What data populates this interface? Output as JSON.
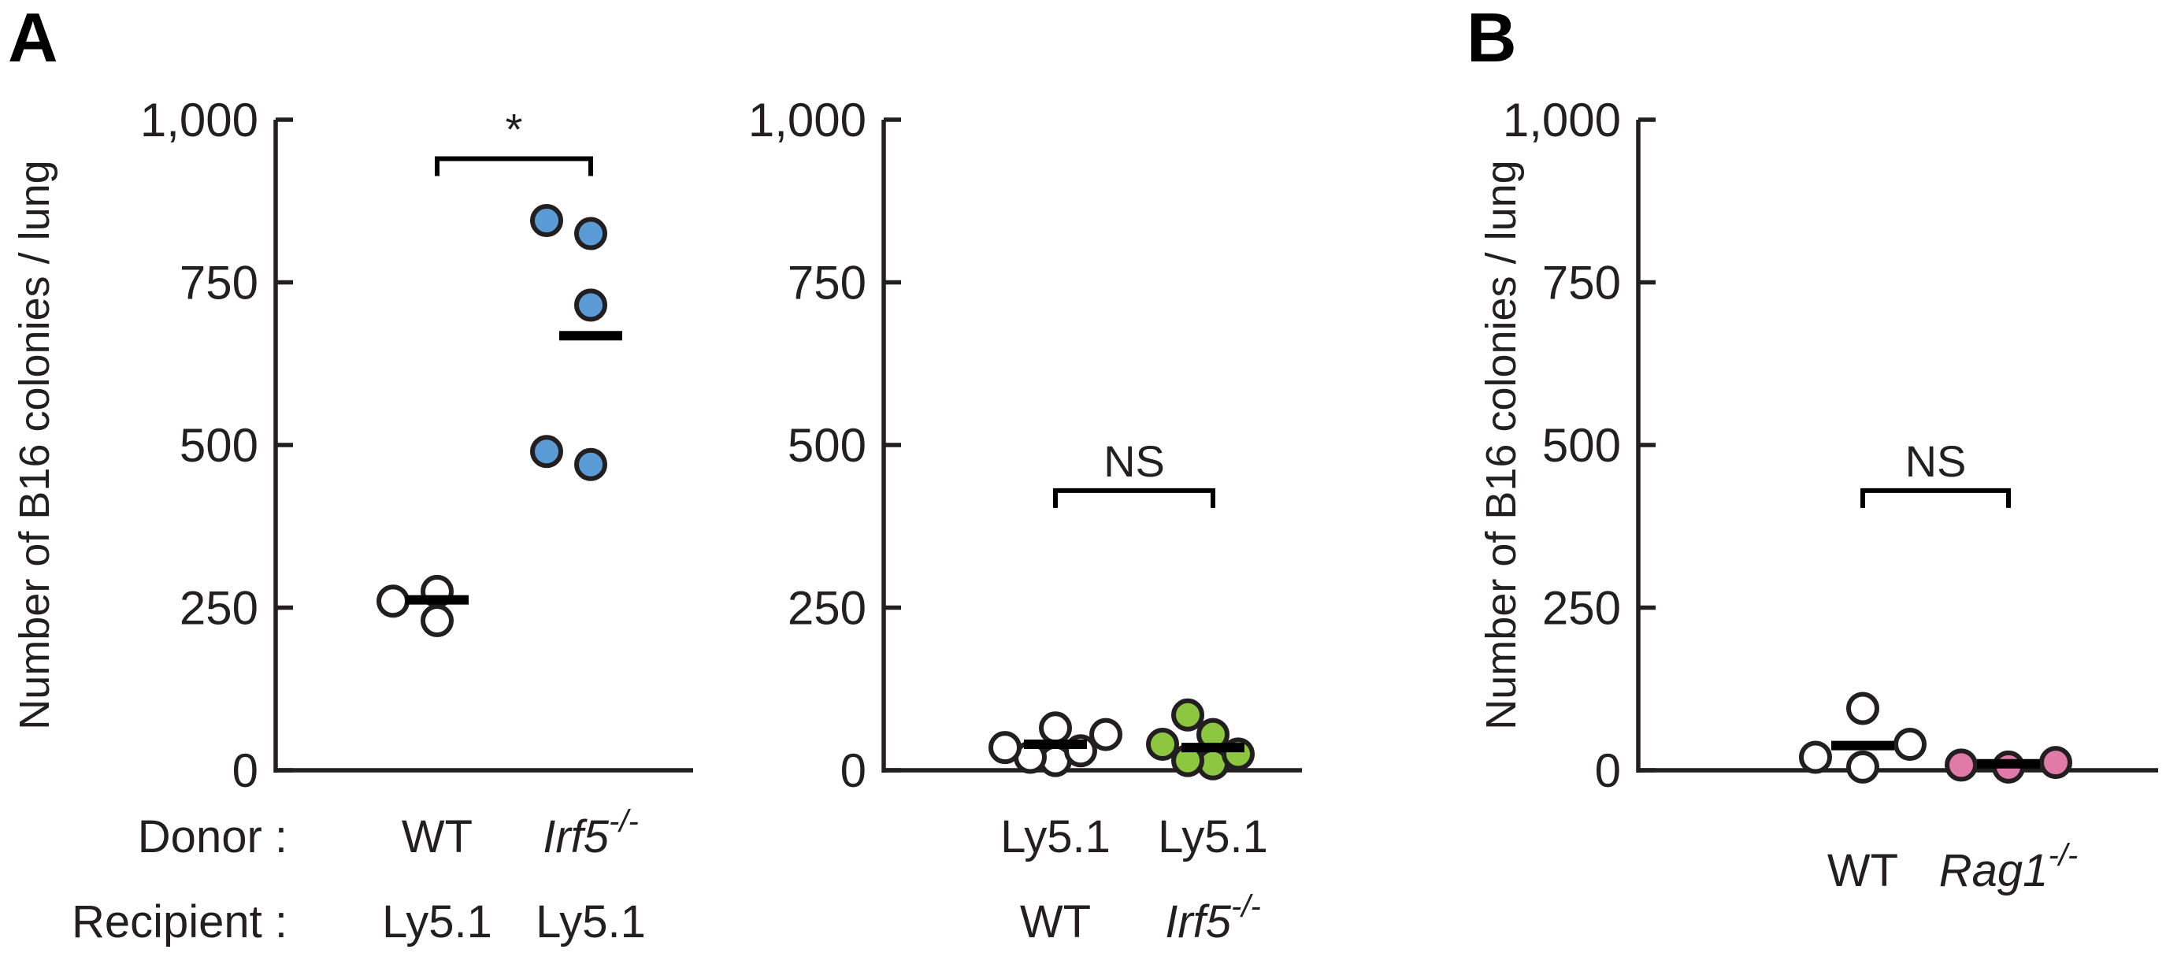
{
  "panel_labels": {
    "a": "A",
    "b": "B"
  },
  "row_labels": {
    "donor": "Donor :",
    "recipient": "Recipient :"
  },
  "chart_data": [
    {
      "type": "scatter",
      "panel": "A",
      "ylabel": "Number of B16 colonies / lung",
      "ylim": [
        0,
        1000
      ],
      "yticks": [
        0,
        250,
        500,
        750,
        1000
      ],
      "ytick_labels": [
        "0",
        "250",
        "500",
        "750",
        "1,000"
      ],
      "groups": [
        {
          "donor": "WT",
          "donor_suffix": "",
          "recipient": "Ly5.1",
          "recipient_suffix": "",
          "color": "#ffffff",
          "values": [
            230,
            260,
            275
          ],
          "mean": 262
        },
        {
          "donor": "Irf5",
          "donor_suffix": "-/-",
          "recipient": "Ly5.1",
          "recipient_suffix": "",
          "color": "#5b9bd5",
          "values": [
            470,
            490,
            715,
            825,
            845
          ],
          "mean": 668
        }
      ],
      "significance": {
        "label": "*",
        "y": 940
      }
    },
    {
      "type": "scatter",
      "panel": "A",
      "ylim": [
        0,
        1000
      ],
      "yticks": [
        0,
        250,
        500,
        750,
        1000
      ],
      "ytick_labels": [
        "0",
        "250",
        "500",
        "750",
        "1,000"
      ],
      "groups": [
        {
          "donor": "Ly5.1",
          "donor_suffix": "",
          "recipient": "WT",
          "recipient_suffix": "",
          "color": "#ffffff",
          "values": [
            15,
            20,
            30,
            35,
            55,
            65
          ],
          "mean": 40
        },
        {
          "donor": "Ly5.1",
          "donor_suffix": "",
          "recipient": "Irf5",
          "recipient_suffix": "-/-",
          "color": "#8dc63f",
          "values": [
            10,
            15,
            25,
            40,
            55,
            85
          ],
          "mean": 35
        }
      ],
      "significance": {
        "label": "NS",
        "y": 430
      }
    },
    {
      "type": "scatter",
      "panel": "B",
      "ylabel": "Number of B16 colonies / lung",
      "ylim": [
        0,
        1000
      ],
      "yticks": [
        0,
        250,
        500,
        750,
        1000
      ],
      "ytick_labels": [
        "0",
        "250",
        "500",
        "750",
        "1,000"
      ],
      "groups": [
        {
          "donor": "WT",
          "donor_suffix": "",
          "recipient": "",
          "recipient_suffix": "",
          "color": "#ffffff",
          "values": [
            5,
            20,
            40,
            95
          ],
          "mean": 38
        },
        {
          "donor": "Rag1",
          "donor_suffix": "-/-",
          "recipient": "",
          "recipient_suffix": "",
          "color": "#e07ba7",
          "values": [
            5,
            8,
            12
          ],
          "mean": 10
        }
      ],
      "significance": {
        "label": "NS",
        "y": 430
      }
    }
  ]
}
